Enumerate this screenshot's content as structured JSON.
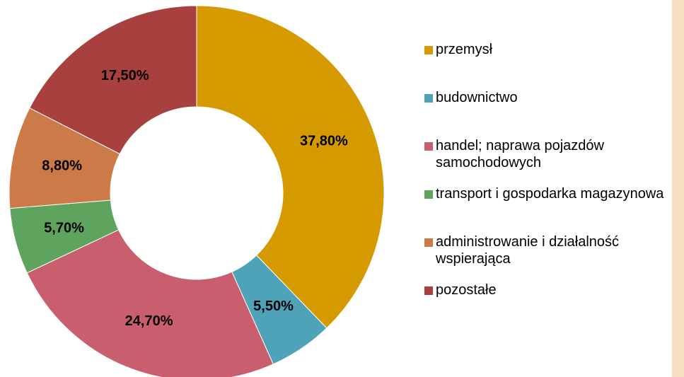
{
  "chart_data": {
    "type": "donut",
    "categories": [
      "przemysł",
      "budownictwo",
      "handel; naprawa pojazdów samochodowych",
      "transport i gospodarka magazynowa",
      "administrowanie i działalność wspierająca",
      "pozostałe"
    ],
    "values": [
      37.8,
      5.5,
      24.7,
      5.7,
      8.8,
      17.5
    ],
    "value_labels": [
      "37,80%",
      "5,50%",
      "24,70%",
      "5,70%",
      "8,80%",
      "17,50%"
    ],
    "colors": [
      "#d49a00",
      "#4ea3b8",
      "#c95f6e",
      "#5ea35e",
      "#cc7a48",
      "#a94040"
    ],
    "legend": "right"
  }
}
